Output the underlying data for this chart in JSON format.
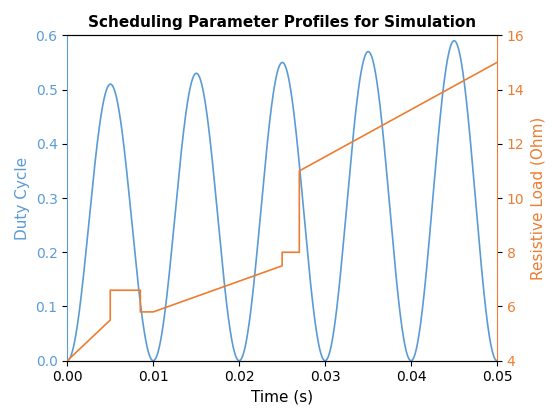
{
  "title": "Scheduling Parameter Profiles for Simulation",
  "xlabel": "Time (s)",
  "ylabel_left": "Duty Cycle",
  "ylabel_right": "Resistive Load (Ohm)",
  "xlim": [
    0,
    0.05
  ],
  "ylim_left": [
    0,
    0.6
  ],
  "ylim_right": [
    4,
    16
  ],
  "blue_color": "#5B9BD5",
  "orange_color": "#ED7D31",
  "sine_freq": 100,
  "n_points_sine": 5000,
  "background_color": "#FFFFFF"
}
